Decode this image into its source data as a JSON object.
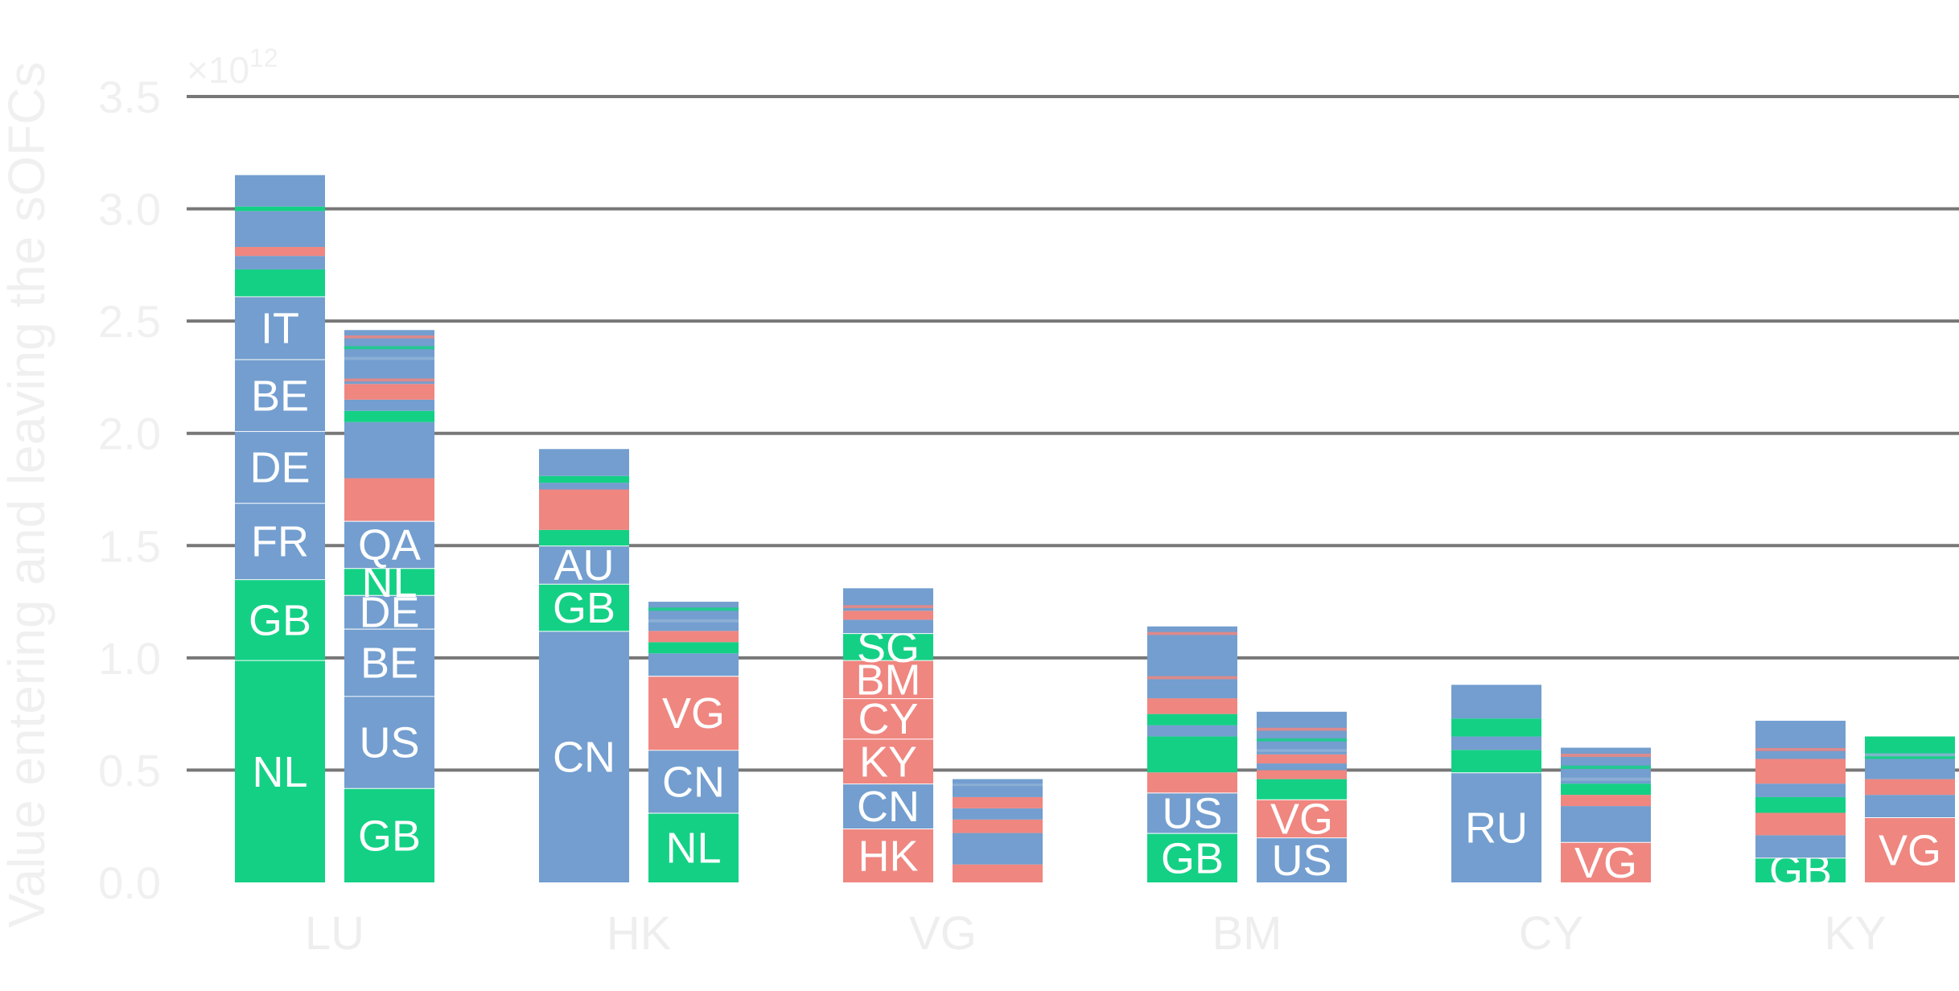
{
  "chart_data": {
    "type": "bar",
    "stacked": true,
    "ylabel": "Value entering and leaving the sOFCs",
    "y_multiplier_label": "×10",
    "y_multiplier_exp": "12",
    "ylim": [
      0,
      3.5
    ],
    "yticks": [
      "0.0",
      "0.5",
      "1.0",
      "1.5",
      "2.0",
      "2.5",
      "3.0",
      "3.5"
    ],
    "categories": [
      "LU",
      "HK",
      "VG",
      "BM",
      "CY",
      "KY"
    ],
    "colors": {
      "blue": "#739ecf",
      "green": "#14d085",
      "red": "#ef8680"
    },
    "grid": true,
    "bars": [
      {
        "category": "LU",
        "side": "left",
        "total": 3.15,
        "segments": [
          {
            "label": "NL",
            "value": 0.99,
            "color": "green"
          },
          {
            "label": "GB",
            "value": 0.36,
            "color": "green"
          },
          {
            "label": "FR",
            "value": 0.34,
            "color": "blue"
          },
          {
            "label": "DE",
            "value": 0.32,
            "color": "blue"
          },
          {
            "label": "BE",
            "value": 0.32,
            "color": "blue"
          },
          {
            "label": "IT",
            "value": 0.28,
            "color": "blue"
          },
          {
            "label": "",
            "value": 0.12,
            "color": "green"
          },
          {
            "label": "",
            "value": 0.06,
            "color": "blue"
          },
          {
            "label": "",
            "value": 0.04,
            "color": "red"
          },
          {
            "label": "",
            "value": 0.16,
            "color": "blue"
          },
          {
            "label": "",
            "value": 0.02,
            "color": "green"
          },
          {
            "label": "",
            "value": 0.14,
            "color": "blue"
          }
        ]
      },
      {
        "category": "LU",
        "side": "right",
        "total": 2.46,
        "segments": [
          {
            "label": "GB",
            "value": 0.42,
            "color": "green"
          },
          {
            "label": "US",
            "value": 0.41,
            "color": "blue"
          },
          {
            "label": "BE",
            "value": 0.3,
            "color": "blue"
          },
          {
            "label": "DE",
            "value": 0.15,
            "color": "blue"
          },
          {
            "label": "NL",
            "value": 0.12,
            "color": "green"
          },
          {
            "label": "QA",
            "value": 0.21,
            "color": "blue"
          },
          {
            "label": "",
            "value": 0.19,
            "color": "red"
          },
          {
            "label": "",
            "value": 0.25,
            "color": "blue"
          },
          {
            "label": "",
            "value": 0.05,
            "color": "green"
          },
          {
            "label": "",
            "value": 0.05,
            "color": "blue"
          },
          {
            "label": "",
            "value": 0.07,
            "color": "red"
          },
          {
            "label": "",
            "value": 0.24,
            "color": "blue"
          }
        ]
      },
      {
        "category": "HK",
        "side": "left",
        "total": 1.93,
        "segments": [
          {
            "label": "CN",
            "value": 1.12,
            "color": "blue"
          },
          {
            "label": "GB",
            "value": 0.21,
            "color": "green"
          },
          {
            "label": "AU",
            "value": 0.17,
            "color": "blue"
          },
          {
            "label": "",
            "value": 0.07,
            "color": "green"
          },
          {
            "label": "",
            "value": 0.18,
            "color": "red"
          },
          {
            "label": "",
            "value": 0.03,
            "color": "blue"
          },
          {
            "label": "",
            "value": 0.03,
            "color": "green"
          },
          {
            "label": "",
            "value": 0.12,
            "color": "blue"
          }
        ]
      },
      {
        "category": "HK",
        "side": "right",
        "total": 1.25,
        "segments": [
          {
            "label": "NL",
            "value": 0.31,
            "color": "green"
          },
          {
            "label": "CN",
            "value": 0.28,
            "color": "blue"
          },
          {
            "label": "VG",
            "value": 0.33,
            "color": "red"
          },
          {
            "label": "",
            "value": 0.1,
            "color": "blue"
          },
          {
            "label": "",
            "value": 0.05,
            "color": "green"
          },
          {
            "label": "",
            "value": 0.05,
            "color": "red"
          },
          {
            "label": "",
            "value": 0.13,
            "color": "blue"
          }
        ]
      },
      {
        "category": "VG",
        "side": "left",
        "total": 1.31,
        "segments": [
          {
            "label": "HK",
            "value": 0.24,
            "color": "red"
          },
          {
            "label": "CN",
            "value": 0.2,
            "color": "blue"
          },
          {
            "label": "KY",
            "value": 0.2,
            "color": "red"
          },
          {
            "label": "CY",
            "value": 0.18,
            "color": "red"
          },
          {
            "label": "BM",
            "value": 0.17,
            "color": "red"
          },
          {
            "label": "SG",
            "value": 0.12,
            "color": "green"
          },
          {
            "label": "",
            "value": 0.06,
            "color": "blue"
          },
          {
            "label": "",
            "value": 0.04,
            "color": "red"
          },
          {
            "label": "",
            "value": 0.1,
            "color": "blue"
          }
        ]
      },
      {
        "category": "VG",
        "side": "right",
        "total": 0.46,
        "segments": [
          {
            "label": "",
            "value": 0.08,
            "color": "red"
          },
          {
            "label": "",
            "value": 0.14,
            "color": "blue"
          },
          {
            "label": "",
            "value": 0.06,
            "color": "red"
          },
          {
            "label": "",
            "value": 0.05,
            "color": "blue"
          },
          {
            "label": "",
            "value": 0.05,
            "color": "red"
          },
          {
            "label": "",
            "value": 0.08,
            "color": "blue"
          }
        ]
      },
      {
        "category": "BM",
        "side": "left",
        "total": 1.14,
        "segments": [
          {
            "label": "GB",
            "value": 0.22,
            "color": "green"
          },
          {
            "label": "US",
            "value": 0.18,
            "color": "blue"
          },
          {
            "label": "",
            "value": 0.09,
            "color": "red"
          },
          {
            "label": "",
            "value": 0.16,
            "color": "green"
          },
          {
            "label": "",
            "value": 0.05,
            "color": "blue"
          },
          {
            "label": "",
            "value": 0.05,
            "color": "green"
          },
          {
            "label": "",
            "value": 0.07,
            "color": "red"
          },
          {
            "label": "",
            "value": 0.32,
            "color": "blue"
          }
        ]
      },
      {
        "category": "BM",
        "side": "right",
        "total": 0.76,
        "segments": [
          {
            "label": "US",
            "value": 0.2,
            "color": "blue"
          },
          {
            "label": "VG",
            "value": 0.17,
            "color": "red"
          },
          {
            "label": "",
            "value": 0.09,
            "color": "green"
          },
          {
            "label": "",
            "value": 0.04,
            "color": "red"
          },
          {
            "label": "",
            "value": 0.03,
            "color": "blue"
          },
          {
            "label": "",
            "value": 0.04,
            "color": "red"
          },
          {
            "label": "",
            "value": 0.19,
            "color": "blue"
          }
        ]
      },
      {
        "category": "CY",
        "side": "left",
        "total": 0.88,
        "segments": [
          {
            "label": "RU",
            "value": 0.49,
            "color": "blue"
          },
          {
            "label": "",
            "value": 0.1,
            "color": "green"
          },
          {
            "label": "",
            "value": 0.06,
            "color": "blue"
          },
          {
            "label": "",
            "value": 0.08,
            "color": "green"
          },
          {
            "label": "",
            "value": 0.15,
            "color": "blue"
          }
        ]
      },
      {
        "category": "CY",
        "side": "right",
        "total": 0.6,
        "segments": [
          {
            "label": "VG",
            "value": 0.18,
            "color": "red"
          },
          {
            "label": "",
            "value": 0.16,
            "color": "blue"
          },
          {
            "label": "",
            "value": 0.05,
            "color": "red"
          },
          {
            "label": "",
            "value": 0.05,
            "color": "green"
          },
          {
            "label": "",
            "value": 0.16,
            "color": "blue"
          }
        ]
      },
      {
        "category": "KY",
        "side": "left",
        "total": 0.72,
        "segments": [
          {
            "label": "GB",
            "value": 0.11,
            "color": "green"
          },
          {
            "label": "",
            "value": 0.1,
            "color": "blue"
          },
          {
            "label": "",
            "value": 0.1,
            "color": "red"
          },
          {
            "label": "",
            "value": 0.07,
            "color": "green"
          },
          {
            "label": "",
            "value": 0.06,
            "color": "blue"
          },
          {
            "label": "",
            "value": 0.11,
            "color": "red"
          },
          {
            "label": "",
            "value": 0.17,
            "color": "blue"
          }
        ]
      },
      {
        "category": "KY",
        "side": "right",
        "total": 0.65,
        "segments": [
          {
            "label": "VG",
            "value": 0.29,
            "color": "red"
          },
          {
            "label": "",
            "value": 0.1,
            "color": "blue"
          },
          {
            "label": "",
            "value": 0.07,
            "color": "red"
          },
          {
            "label": "",
            "value": 0.09,
            "color": "blue"
          },
          {
            "label": "",
            "value": 0.1,
            "color": "green"
          }
        ]
      }
    ]
  }
}
